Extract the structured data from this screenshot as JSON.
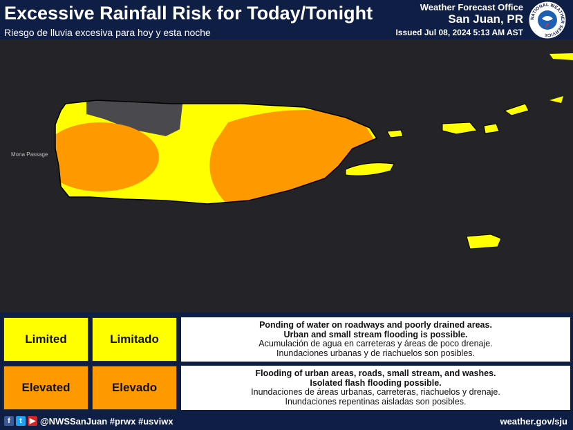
{
  "header": {
    "title": "Excessive Rainfall Risk for Today/Tonight",
    "subtitle": "Riesgo de lluvia excesiva para hoy y esta noche",
    "office": "Weather Forecast Office",
    "location": "San Juan, PR",
    "issued": "Issued Jul 08, 2024 5:13 AM AST",
    "logo_text": "NATIONAL WEATHER SERVICE"
  },
  "map": {
    "labels": [
      "Mona Passage"
    ]
  },
  "legend": {
    "rows": [
      {
        "english": "Limited",
        "spanish": "Limitado",
        "color": "#ffff00",
        "description": [
          "Ponding of water on roadways and poorly drained areas.",
          "Urban and small stream flooding is possible.",
          "Acumulación de agua en carreteras y áreas de poco drenaje.",
          "Inundaciones urbanas y de riachuelos son posibles."
        ]
      },
      {
        "english": "Elevated",
        "spanish": "Elevado",
        "color": "#ff9900",
        "description": [
          "Flooding of urban areas, roads, small stream, and washes.",
          "Isolated flash flooding possible.",
          "Inundaciones de áreas urbanas, carreteras, riachuelos y drenaje.",
          "Inundaciones repentinas aisladas son posibles."
        ]
      }
    ]
  },
  "footer": {
    "handle": "@NWSSanJuan #prwx #usviwx",
    "website": "weather.gov/sju"
  }
}
